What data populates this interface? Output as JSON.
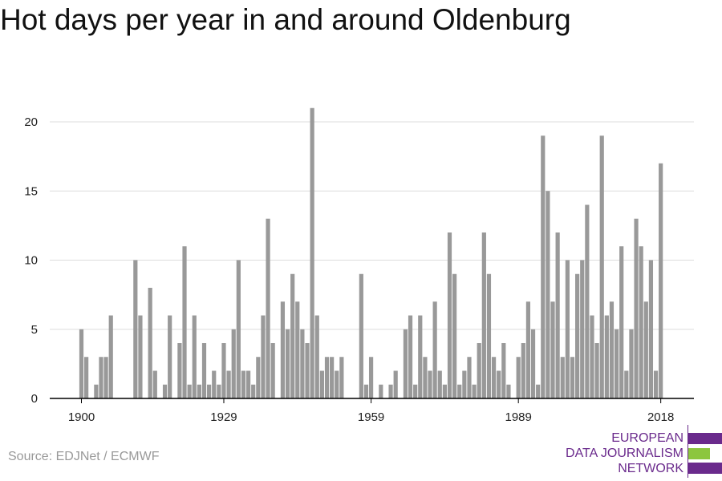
{
  "title": "Hot days per year in and around Oldenburg",
  "source": "Source: EDJNet / ECMWF",
  "logo": {
    "line1": "EUROPEAN",
    "line2": "DATA JOURNALISM",
    "line3": "NETWORK",
    "colors": [
      "#6a2a8c",
      "#8cc63f",
      "#6a2a8c"
    ]
  },
  "colors": {
    "bar": "#999999",
    "grid": "#dddddd",
    "axis": "#000000",
    "text": "#222222"
  },
  "chart_data": {
    "type": "bar",
    "title": "Hot days per year in and around Oldenburg",
    "xlabel": "",
    "ylabel": "",
    "ylim": [
      0,
      21
    ],
    "yticks": [
      0,
      5,
      10,
      15,
      20
    ],
    "xticks": [
      1900,
      1929,
      1959,
      1989,
      2018
    ],
    "grid": true,
    "categories": [
      1900,
      1901,
      1902,
      1903,
      1904,
      1905,
      1906,
      1907,
      1908,
      1909,
      1910,
      1911,
      1912,
      1913,
      1914,
      1915,
      1916,
      1917,
      1918,
      1919,
      1920,
      1921,
      1922,
      1923,
      1924,
      1925,
      1926,
      1927,
      1928,
      1929,
      1930,
      1931,
      1932,
      1933,
      1934,
      1935,
      1936,
      1937,
      1938,
      1939,
      1940,
      1941,
      1942,
      1943,
      1944,
      1945,
      1946,
      1947,
      1948,
      1949,
      1950,
      1951,
      1952,
      1953,
      1954,
      1955,
      1956,
      1957,
      1958,
      1959,
      1960,
      1961,
      1962,
      1963,
      1964,
      1965,
      1966,
      1967,
      1968,
      1969,
      1970,
      1971,
      1972,
      1973,
      1974,
      1975,
      1976,
      1977,
      1978,
      1979,
      1980,
      1981,
      1982,
      1983,
      1984,
      1985,
      1986,
      1987,
      1988,
      1989,
      1990,
      1991,
      1992,
      1993,
      1994,
      1995,
      1996,
      1997,
      1998,
      1999,
      2000,
      2001,
      2002,
      2003,
      2004,
      2005,
      2006,
      2007,
      2008,
      2009,
      2010,
      2011,
      2012,
      2013,
      2014,
      2015,
      2016,
      2017,
      2018
    ],
    "values": [
      5,
      3,
      0,
      1,
      3,
      3,
      6,
      0,
      0,
      0,
      0,
      10,
      6,
      0,
      8,
      2,
      0,
      1,
      6,
      0,
      4,
      11,
      1,
      6,
      1,
      4,
      1,
      2,
      1,
      4,
      2,
      5,
      10,
      2,
      2,
      1,
      3,
      6,
      13,
      4,
      0,
      7,
      5,
      9,
      7,
      5,
      4,
      21,
      6,
      2,
      3,
      3,
      2,
      3,
      0,
      0,
      0,
      9,
      1,
      3,
      0,
      1,
      0,
      1,
      2,
      0,
      5,
      6,
      1,
      6,
      3,
      2,
      7,
      2,
      1,
      12,
      9,
      1,
      2,
      3,
      1,
      4,
      12,
      9,
      3,
      2,
      4,
      1,
      0,
      3,
      4,
      7,
      5,
      1,
      19,
      15,
      7,
      12,
      3,
      10,
      3,
      9,
      10,
      14,
      6,
      4,
      19,
      6,
      7,
      5,
      11,
      2,
      5,
      13,
      11,
      7,
      10,
      2,
      17
    ]
  }
}
